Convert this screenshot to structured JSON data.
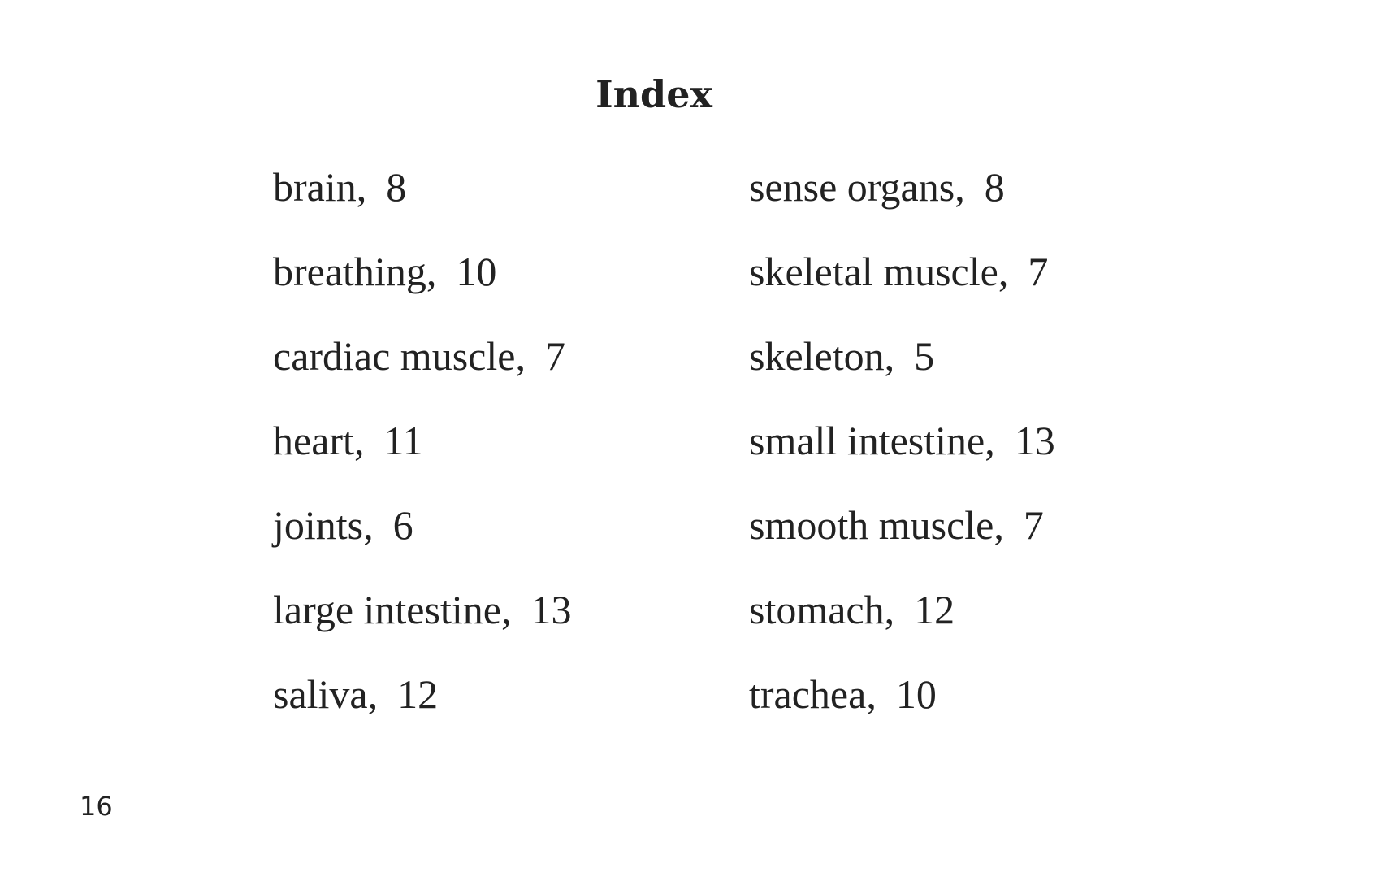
{
  "title": "Index",
  "left_entries": [
    {
      "term": "brain",
      "page": "8"
    },
    {
      "term": "breathing",
      "page": "10"
    },
    {
      "term": "cardiac muscle",
      "page": "7"
    },
    {
      "term": "heart",
      "page": "11"
    },
    {
      "term": "joints",
      "page": "6"
    },
    {
      "term": "large intestine",
      "page": "13"
    },
    {
      "term": "saliva",
      "page": "12"
    }
  ],
  "right_entries": [
    {
      "term": "sense organs",
      "page": "8"
    },
    {
      "term": "skeletal muscle",
      "page": "7"
    },
    {
      "term": "skeleton",
      "page": "5"
    },
    {
      "term": "small intestine",
      "page": "13"
    },
    {
      "term": "smooth muscle",
      "page": "7"
    },
    {
      "term": "stomach",
      "page": "12"
    },
    {
      "term": "trachea",
      "page": "10"
    }
  ],
  "page_number": "16"
}
